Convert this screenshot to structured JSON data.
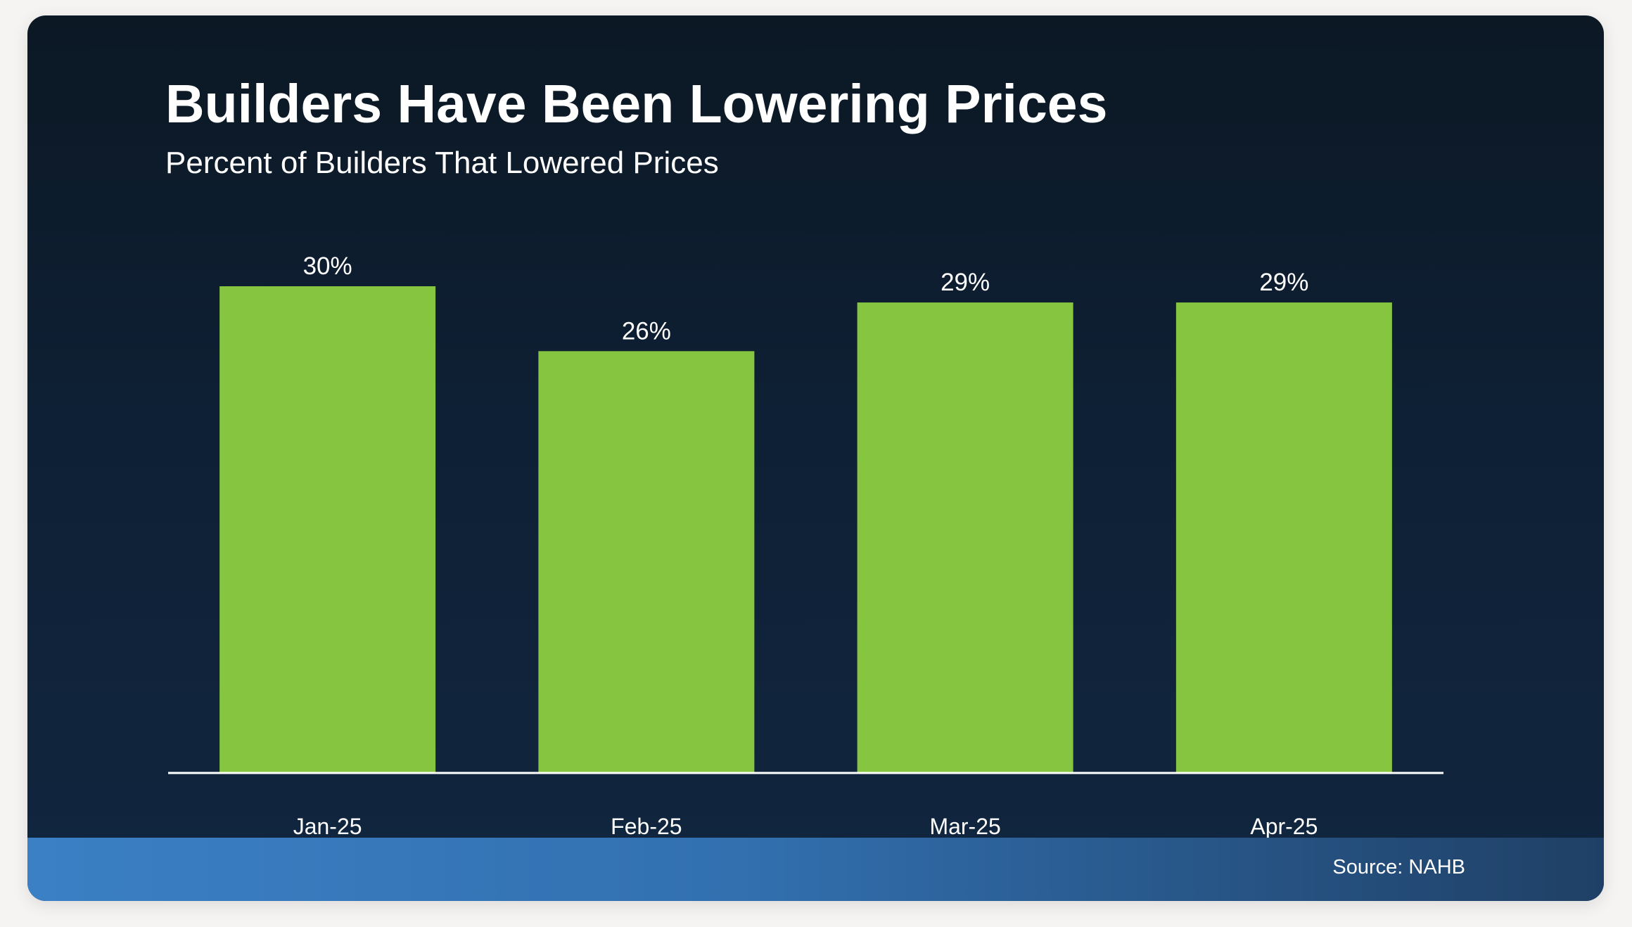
{
  "header": {
    "title": "Builders Have Been Lowering Prices",
    "subtitle": "Percent of Builders That Lowered Prices"
  },
  "footer": {
    "source": "Source: NAHB"
  },
  "colors": {
    "bar": "#86c540",
    "baseline": "#ffffff",
    "text": "#ffffff"
  },
  "chart_data": {
    "type": "bar",
    "title": "Builders Have Been Lowering Prices",
    "subtitle": "Percent of Builders That Lowered Prices",
    "categories": [
      "Jan-25",
      "Feb-25",
      "Mar-25",
      "Apr-25"
    ],
    "values": [
      30,
      26,
      29,
      29
    ],
    "data_labels": [
      "30%",
      "26%",
      "29%",
      "29%"
    ],
    "xlabel": "",
    "ylabel": "",
    "ylim": [
      0,
      30
    ],
    "grid": false,
    "legend": "none"
  }
}
